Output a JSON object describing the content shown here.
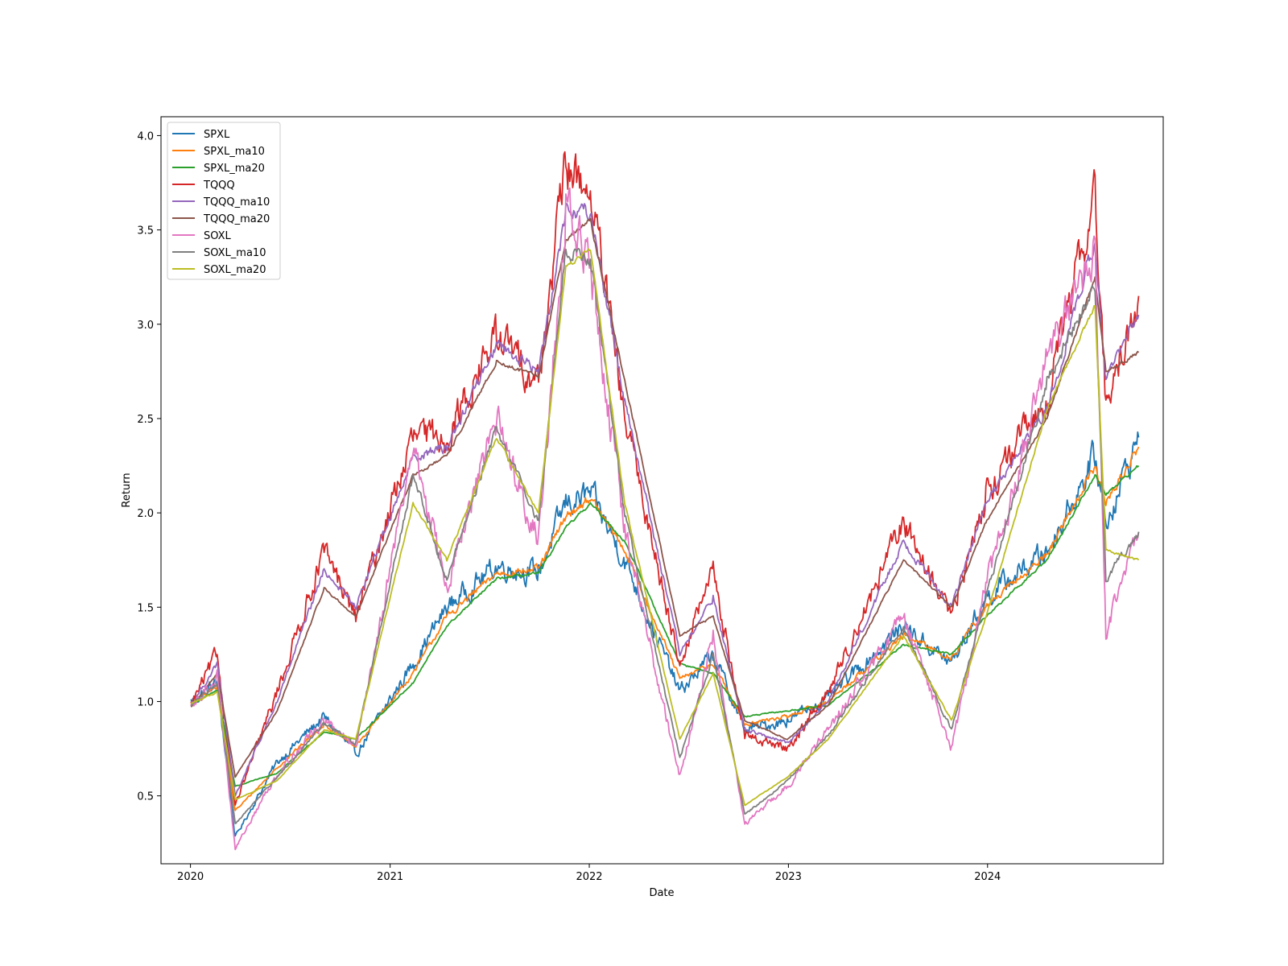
{
  "chart_data": {
    "type": "line",
    "title": "",
    "xlabel": "Date",
    "ylabel": "Return",
    "xlim": [
      "2019-11-08",
      "2024-11-18"
    ],
    "ylim": [
      0.14,
      4.1
    ],
    "x_ticks": [
      "2020",
      "2021",
      "2022",
      "2023",
      "2024"
    ],
    "y_ticks": [
      "0.5",
      "1.0",
      "1.5",
      "2.0",
      "2.5",
      "3.0",
      "3.5",
      "4.0"
    ],
    "grid": false,
    "legend_position": "upper-left",
    "x": [
      "2020-01-02",
      "2020-02-19",
      "2020-03-23",
      "2020-06-08",
      "2020-09-02",
      "2020-10-30",
      "2021-02-12",
      "2021-04-15",
      "2021-07-15",
      "2021-09-30",
      "2021-11-19",
      "2022-01-03",
      "2022-03-07",
      "2022-06-16",
      "2022-08-16",
      "2022-10-13",
      "2022-12-30",
      "2023-03-15",
      "2023-07-31",
      "2023-10-27",
      "2023-12-29",
      "2024-04-19",
      "2024-07-16",
      "2024-08-05",
      "2024-10-04"
    ],
    "series": [
      {
        "name": "SPXL",
        "color": "#1f77b4",
        "values": [
          1.0,
          1.1,
          0.28,
          0.68,
          0.92,
          0.72,
          1.2,
          1.5,
          1.72,
          1.68,
          2.05,
          2.1,
          1.75,
          1.05,
          1.25,
          0.85,
          0.9,
          1.02,
          1.4,
          1.2,
          1.55,
          1.8,
          2.3,
          1.95,
          2.4
        ]
      },
      {
        "name": "SPXL_ma10",
        "color": "#ff7f0e",
        "values": [
          0.99,
          1.08,
          0.42,
          0.65,
          0.88,
          0.76,
          1.15,
          1.45,
          1.68,
          1.7,
          1.98,
          2.08,
          1.8,
          1.12,
          1.2,
          0.88,
          0.92,
          1.0,
          1.35,
          1.23,
          1.5,
          1.78,
          2.25,
          2.05,
          2.35
        ]
      },
      {
        "name": "SPXL_ma20",
        "color": "#2ca02c",
        "values": [
          0.98,
          1.06,
          0.55,
          0.62,
          0.84,
          0.8,
          1.1,
          1.4,
          1.65,
          1.68,
          1.92,
          2.05,
          1.85,
          1.2,
          1.15,
          0.92,
          0.95,
          0.98,
          1.3,
          1.25,
          1.45,
          1.75,
          2.2,
          2.1,
          2.25
        ]
      },
      {
        "name": "TQQQ",
        "color": "#d62728",
        "values": [
          0.98,
          1.25,
          0.45,
          1.05,
          1.8,
          1.45,
          2.4,
          2.4,
          2.95,
          2.7,
          3.85,
          3.7,
          2.5,
          1.2,
          1.7,
          0.82,
          0.75,
          1.05,
          1.95,
          1.45,
          2.1,
          2.6,
          3.7,
          2.55,
          3.15
        ]
      },
      {
        "name": "TQQQ_ma10",
        "color": "#9467bd",
        "values": [
          0.98,
          1.2,
          0.5,
          1.0,
          1.7,
          1.5,
          2.3,
          2.35,
          2.9,
          2.75,
          3.6,
          3.6,
          2.6,
          1.25,
          1.55,
          0.85,
          0.78,
          1.0,
          1.85,
          1.5,
          2.05,
          2.55,
          3.45,
          2.7,
          3.05
        ]
      },
      {
        "name": "TQQQ_ma20",
        "color": "#8c564b",
        "values": [
          0.97,
          1.15,
          0.6,
          0.95,
          1.6,
          1.45,
          2.2,
          2.3,
          2.8,
          2.72,
          3.45,
          3.55,
          2.7,
          1.35,
          1.45,
          0.9,
          0.8,
          0.98,
          1.75,
          1.5,
          1.95,
          2.5,
          3.25,
          2.75,
          2.85
        ]
      },
      {
        "name": "SOXL",
        "color": "#e377c2",
        "values": [
          0.95,
          1.15,
          0.22,
          0.62,
          0.9,
          0.75,
          2.35,
          1.6,
          2.5,
          1.85,
          3.6,
          3.3,
          1.9,
          0.6,
          1.35,
          0.35,
          0.55,
          0.85,
          1.45,
          0.75,
          1.6,
          2.8,
          3.4,
          1.35,
          1.9
        ]
      },
      {
        "name": "SOXL_ma10",
        "color": "#7f7f7f",
        "values": [
          0.98,
          1.1,
          0.35,
          0.6,
          0.88,
          0.78,
          2.2,
          1.65,
          2.45,
          1.95,
          3.4,
          3.35,
          2.0,
          0.7,
          1.25,
          0.4,
          0.58,
          0.82,
          1.4,
          0.85,
          1.55,
          2.7,
          3.2,
          1.65,
          1.9
        ]
      },
      {
        "name": "SOXL_ma20",
        "color": "#bcbd22",
        "values": [
          0.99,
          1.05,
          0.48,
          0.58,
          0.85,
          0.8,
          2.05,
          1.75,
          2.4,
          2.0,
          3.3,
          3.4,
          2.05,
          0.8,
          1.15,
          0.45,
          0.6,
          0.8,
          1.35,
          0.9,
          1.45,
          2.55,
          3.1,
          1.8,
          1.75
        ]
      }
    ]
  }
}
